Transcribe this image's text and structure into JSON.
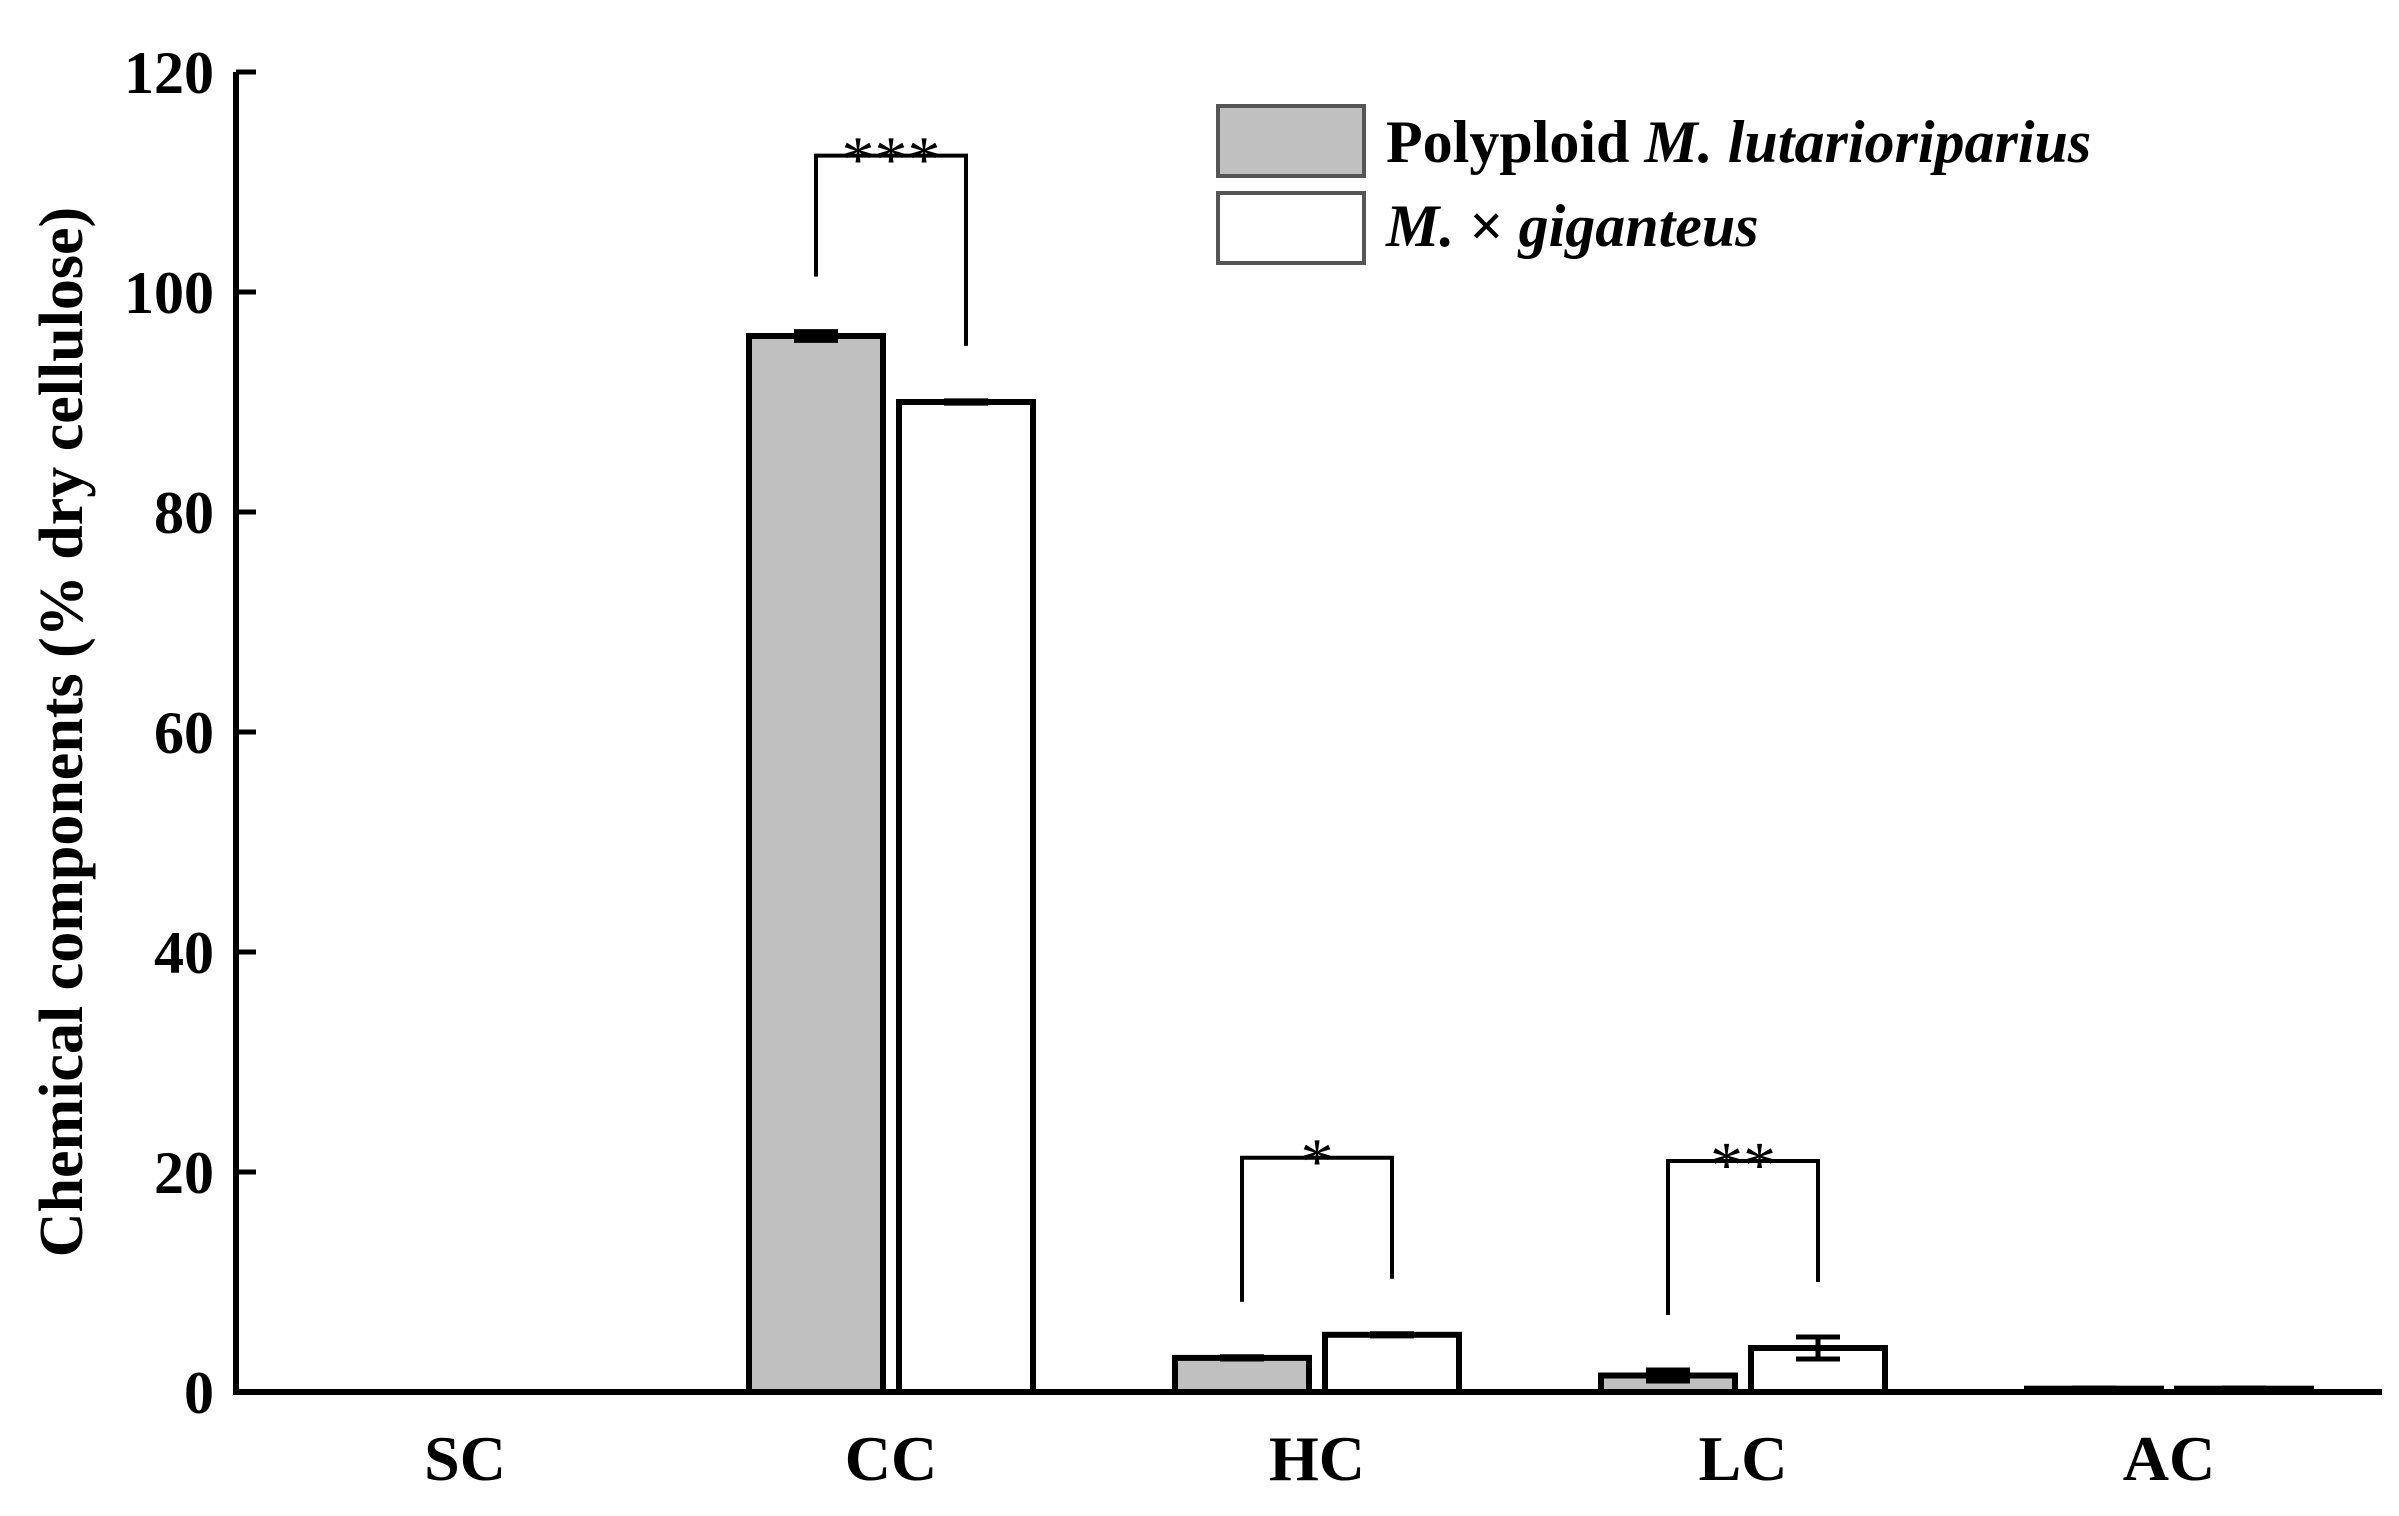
{
  "chart_data": {
    "type": "bar",
    "title": "",
    "xlabel": "",
    "ylabel": "Chemical components (% dry cellulose)",
    "ylim": [
      0,
      120
    ],
    "yticks": [
      0,
      20,
      40,
      60,
      80,
      100,
      120
    ],
    "categories": [
      "SC",
      "CC",
      "HC",
      "LC",
      "AC"
    ],
    "series": [
      {
        "name_plain": "Polyploid ",
        "name_italic": "M. lutarioriparius",
        "fill": "#c0c0c0",
        "values": [
          0,
          96.0,
          3.1,
          1.5,
          0.3
        ],
        "errors": [
          0,
          0.4,
          0.1,
          0.5,
          0.05
        ]
      },
      {
        "name_italic": "M.",
        "name_plain": " × ",
        "name_italic_2": "giganteus",
        "fill": "#ffffff",
        "values": [
          0,
          90.0,
          5.2,
          4.0,
          0.3
        ],
        "errors": [
          0,
          0.1,
          0.1,
          1.0,
          0.05
        ]
      }
    ],
    "significance": [
      {
        "category": "CC",
        "label": "***"
      },
      {
        "category": "HC",
        "label": "*"
      },
      {
        "category": "LC",
        "label": "**"
      }
    ],
    "legend_position": "top-right",
    "grid": false
  }
}
